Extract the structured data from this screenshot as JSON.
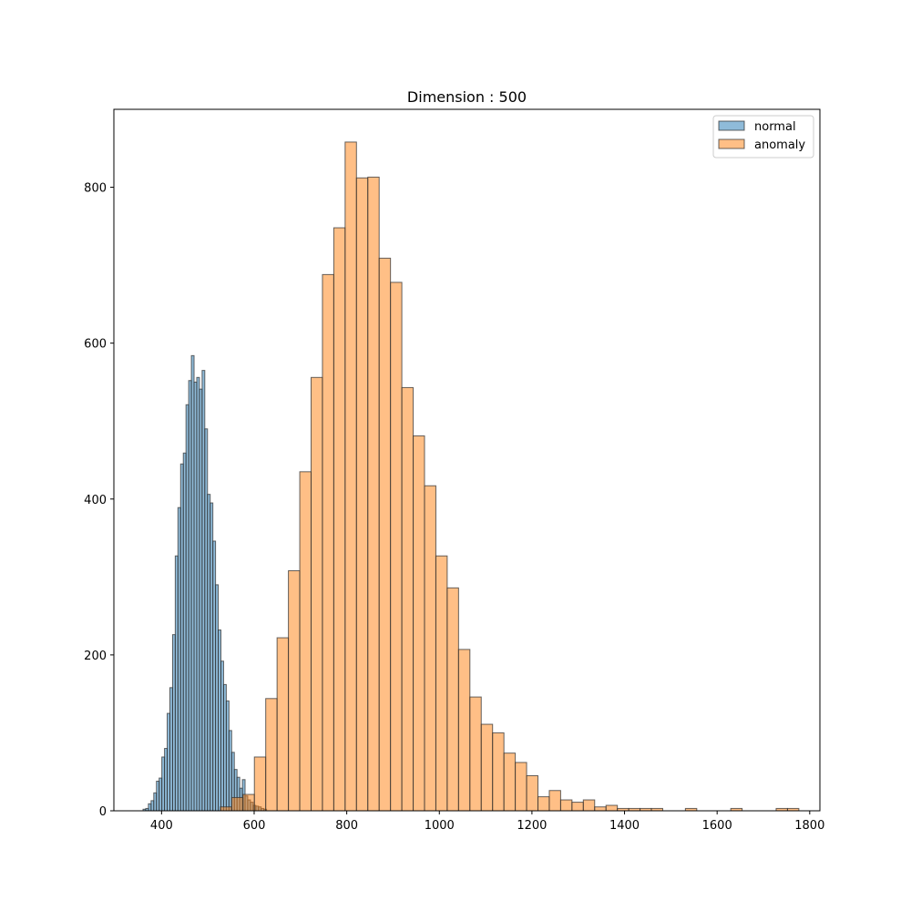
{
  "chart_data": {
    "type": "histogram",
    "title": "Dimension : 500",
    "xlabel": "",
    "ylabel": "",
    "xlim": [
      297,
      1822
    ],
    "ylim": [
      0,
      900
    ],
    "x_ticks": [
      400,
      600,
      800,
      1000,
      1200,
      1400,
      1600,
      1800
    ],
    "y_ticks": [
      0,
      200,
      400,
      600,
      800
    ],
    "grid": false,
    "legend_position": "top-right",
    "colors": {
      "normal": "#1f77b4",
      "anomaly": "#ff7f0e",
      "edge": "#333333"
    },
    "series": [
      {
        "name": "normal",
        "bin_start": 360,
        "bin_width": 5.8,
        "values": [
          2,
          3,
          9,
          13,
          23,
          38,
          42,
          69,
          80,
          125,
          158,
          226,
          327,
          389,
          445,
          459,
          521,
          552,
          584,
          550,
          556,
          541,
          565,
          490,
          406,
          395,
          346,
          290,
          232,
          192,
          162,
          141,
          103,
          75,
          53,
          43,
          29,
          40,
          19,
          14,
          11,
          7,
          6,
          5,
          3,
          2
        ]
      },
      {
        "name": "anomaly",
        "bin_start": 527,
        "bin_width": 24.5,
        "values": [
          5,
          17,
          21,
          69,
          144,
          222,
          308,
          435,
          556,
          688,
          748,
          858,
          812,
          813,
          709,
          678,
          543,
          481,
          417,
          327,
          286,
          207,
          146,
          111,
          100,
          74,
          62,
          45,
          18,
          26,
          14,
          11,
          14,
          5,
          7,
          3,
          3,
          3,
          3,
          0,
          0,
          3,
          0,
          0,
          0,
          3,
          0,
          0,
          0,
          3,
          3
        ]
      }
    ]
  }
}
